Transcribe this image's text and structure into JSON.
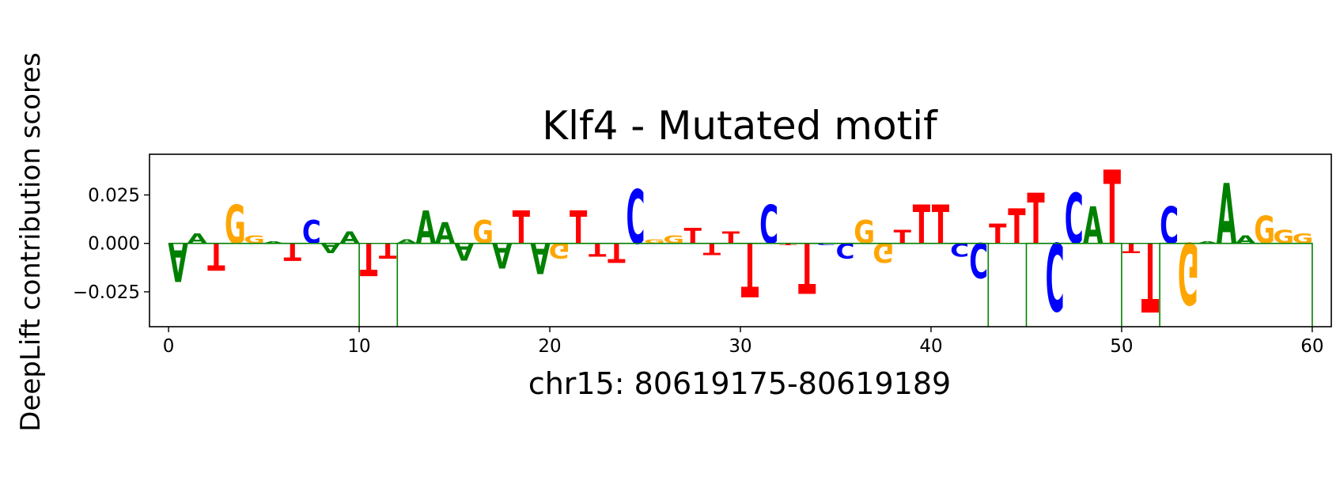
{
  "chart_data": {
    "type": "sequence-logo",
    "title": "Klf4 - Mutated motif",
    "xlabel": "chr15: 80619175-80619189",
    "ylabel": "DeepLift contribution scores",
    "xlim": [
      -1,
      61
    ],
    "ylim": [
      -0.043,
      0.046
    ],
    "xticks": [
      0,
      10,
      20,
      30,
      40,
      50,
      60
    ],
    "yticks": [
      -0.025,
      0.0,
      0.025
    ],
    "ytick_labels": [
      "−0.025",
      "0.000",
      "0.025"
    ],
    "grid": false,
    "colors": {
      "A": "#008000",
      "C": "#0000ff",
      "G": "#ffa500",
      "T": "#ff0000"
    },
    "outline_series": {
      "name": "",
      "color": "#008000",
      "segments": [
        {
          "from": 0,
          "to": 10,
          "value": 0.0
        },
        {
          "from": 10,
          "to": 12,
          "value": -0.05
        },
        {
          "from": 12,
          "to": 43,
          "value": 0.0
        },
        {
          "from": 43,
          "to": 45,
          "value": -0.05
        },
        {
          "from": 45,
          "to": 50,
          "value": 0.0
        },
        {
          "from": 50,
          "to": 52,
          "value": -0.05
        },
        {
          "from": 52,
          "to": 60,
          "value": 0.0
        },
        {
          "from": 60,
          "to": 60.3,
          "value": -0.05
        }
      ]
    },
    "letters": [
      {
        "pos": 0.5,
        "base": "A",
        "value": -0.02
      },
      {
        "pos": 1.5,
        "base": "A",
        "value": 0.005
      },
      {
        "pos": 2.5,
        "base": "T",
        "value": -0.014
      },
      {
        "pos": 3.5,
        "base": "G",
        "value": 0.02
      },
      {
        "pos": 4.5,
        "base": "G",
        "value": 0.004
      },
      {
        "pos": 5.5,
        "base": "A",
        "value": 0.001
      },
      {
        "pos": 6.5,
        "base": "T",
        "value": -0.009
      },
      {
        "pos": 7.5,
        "base": "C",
        "value": 0.012
      },
      {
        "pos": 8.5,
        "base": "A",
        "value": -0.005
      },
      {
        "pos": 9.5,
        "base": "A",
        "value": 0.006
      },
      {
        "pos": 10.5,
        "base": "T",
        "value": -0.017
      },
      {
        "pos": 11.5,
        "base": "T",
        "value": -0.008
      },
      {
        "pos": 12.5,
        "base": "A",
        "value": 0.002
      },
      {
        "pos": 13.5,
        "base": "A",
        "value": 0.017
      },
      {
        "pos": 14.5,
        "base": "A",
        "value": 0.011
      },
      {
        "pos": 15.5,
        "base": "A",
        "value": -0.009
      },
      {
        "pos": 16.5,
        "base": "G",
        "value": 0.012
      },
      {
        "pos": 17.5,
        "base": "A",
        "value": -0.013
      },
      {
        "pos": 18.5,
        "base": "T",
        "value": 0.017
      },
      {
        "pos": 19.5,
        "base": "A",
        "value": -0.016
      },
      {
        "pos": 20.5,
        "base": "G",
        "value": -0.008
      },
      {
        "pos": 21.5,
        "base": "T",
        "value": 0.017
      },
      {
        "pos": 22.5,
        "base": "T",
        "value": -0.007
      },
      {
        "pos": 23.5,
        "base": "T",
        "value": -0.01
      },
      {
        "pos": 24.5,
        "base": "C",
        "value": 0.028
      },
      {
        "pos": 25.5,
        "base": "G",
        "value": 0.002
      },
      {
        "pos": 26.5,
        "base": "G",
        "value": 0.004
      },
      {
        "pos": 27.5,
        "base": "T",
        "value": 0.008
      },
      {
        "pos": 28.5,
        "base": "T",
        "value": -0.006
      },
      {
        "pos": 29.5,
        "base": "T",
        "value": 0.006
      },
      {
        "pos": 30.5,
        "base": "T",
        "value": -0.028
      },
      {
        "pos": 31.5,
        "base": "C",
        "value": 0.02
      },
      {
        "pos": 32.5,
        "base": "T",
        "value": -0.001
      },
      {
        "pos": 33.5,
        "base": "T",
        "value": -0.026
      },
      {
        "pos": 34.5,
        "base": "C",
        "value": -0.001
      },
      {
        "pos": 35.5,
        "base": "C",
        "value": -0.008
      },
      {
        "pos": 36.5,
        "base": "G",
        "value": 0.012
      },
      {
        "pos": 37.5,
        "base": "G",
        "value": -0.01
      },
      {
        "pos": 38.5,
        "base": "T",
        "value": 0.007
      },
      {
        "pos": 39.5,
        "base": "T",
        "value": 0.02
      },
      {
        "pos": 40.5,
        "base": "T",
        "value": 0.02
      },
      {
        "pos": 41.5,
        "base": "C",
        "value": -0.007
      },
      {
        "pos": 42.5,
        "base": "C",
        "value": -0.018
      },
      {
        "pos": 43.5,
        "base": "T",
        "value": 0.01
      },
      {
        "pos": 44.5,
        "base": "T",
        "value": 0.018
      },
      {
        "pos": 45.5,
        "base": "T",
        "value": 0.026
      },
      {
        "pos": 46.5,
        "base": "C",
        "value": -0.035
      },
      {
        "pos": 47.5,
        "base": "C",
        "value": 0.026
      },
      {
        "pos": 48.5,
        "base": "A",
        "value": 0.019
      },
      {
        "pos": 49.5,
        "base": "T",
        "value": 0.038
      },
      {
        "pos": 50.5,
        "base": "T",
        "value": -0.005
      },
      {
        "pos": 51.5,
        "base": "T",
        "value": -0.036
      },
      {
        "pos": 52.5,
        "base": "C",
        "value": 0.019
      },
      {
        "pos": 53.5,
        "base": "G",
        "value": -0.032
      },
      {
        "pos": 54.5,
        "base": "A",
        "value": 0.001
      },
      {
        "pos": 55.5,
        "base": "A",
        "value": 0.031
      },
      {
        "pos": 56.5,
        "base": "A",
        "value": 0.004
      },
      {
        "pos": 57.5,
        "base": "G",
        "value": 0.014
      },
      {
        "pos": 58.5,
        "base": "G",
        "value": 0.007
      },
      {
        "pos": 59.5,
        "base": "G",
        "value": 0.005
      }
    ]
  }
}
